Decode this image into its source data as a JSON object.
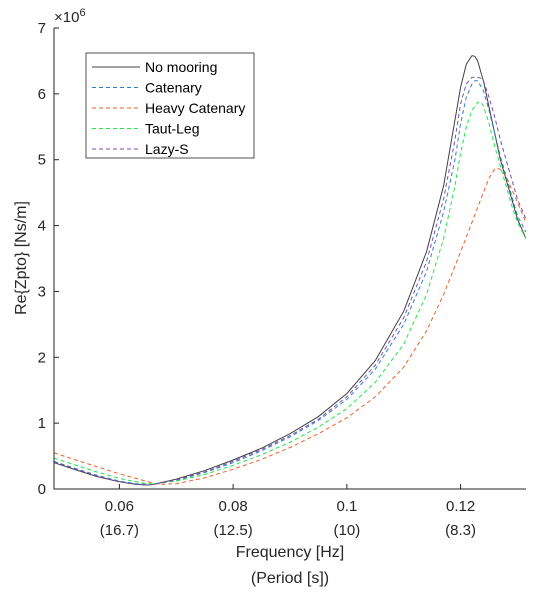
{
  "chart_data": {
    "type": "line",
    "title": "",
    "xlabel": "Frequency [Hz]",
    "xlabel2": "(Period [s])",
    "ylabel": "Re{Zpto} [Ns/m]",
    "y_exponent": "×10",
    "y_exponent_power": "6",
    "xlim": [
      0.0485,
      0.1315
    ],
    "ylim": [
      0,
      7
    ],
    "xticks": [
      0.06,
      0.08,
      0.1,
      0.12
    ],
    "xtick_labels": [
      "0.06",
      "0.08",
      "0.1",
      "0.12"
    ],
    "xtick_period_labels": [
      "(16.7)",
      "(12.5)",
      "(10)",
      "(8.3)"
    ],
    "yticks": [
      0,
      1,
      2,
      3,
      4,
      5,
      6,
      7
    ],
    "ytick_labels": [
      "0",
      "1",
      "2",
      "3",
      "4",
      "5",
      "6",
      "7"
    ],
    "grid": false,
    "legend_position": "top-left",
    "series": [
      {
        "name": "No mooring",
        "color": "#404040",
        "dash": "solid",
        "x": [
          0.0485,
          0.052,
          0.056,
          0.06,
          0.063,
          0.065,
          0.066,
          0.07,
          0.075,
          0.08,
          0.085,
          0.09,
          0.095,
          0.1,
          0.105,
          0.11,
          0.114,
          0.117,
          0.119,
          0.12,
          0.121,
          0.122,
          0.1225,
          0.123,
          0.124,
          0.125,
          0.126,
          0.127,
          0.128,
          0.129,
          0.13,
          0.1315
        ],
        "y": [
          0.4,
          0.3,
          0.19,
          0.11,
          0.07,
          0.06,
          0.07,
          0.15,
          0.28,
          0.44,
          0.62,
          0.84,
          1.1,
          1.45,
          1.95,
          2.7,
          3.6,
          4.6,
          5.6,
          6.1,
          6.45,
          6.58,
          6.57,
          6.5,
          6.2,
          5.8,
          5.4,
          5.0,
          4.7,
          4.4,
          4.1,
          3.8
        ]
      },
      {
        "name": "Catenary",
        "color": "#2e7fcf",
        "dash": "dashed",
        "x": [
          0.0485,
          0.052,
          0.056,
          0.06,
          0.063,
          0.065,
          0.066,
          0.07,
          0.075,
          0.08,
          0.085,
          0.09,
          0.095,
          0.1,
          0.105,
          0.11,
          0.114,
          0.117,
          0.119,
          0.12,
          0.121,
          0.122,
          0.1225,
          0.123,
          0.124,
          0.125,
          0.126,
          0.127,
          0.128,
          0.129,
          0.13,
          0.1315
        ],
        "y": [
          0.42,
          0.32,
          0.21,
          0.12,
          0.08,
          0.07,
          0.07,
          0.13,
          0.25,
          0.4,
          0.58,
          0.79,
          1.04,
          1.36,
          1.82,
          2.5,
          3.3,
          4.2,
          5.0,
          5.55,
          5.95,
          6.15,
          6.2,
          6.2,
          6.05,
          5.75,
          5.4,
          5.05,
          4.75,
          4.45,
          4.15,
          3.9
        ]
      },
      {
        "name": "Heavy Catenary",
        "color": "#e8632c",
        "dash": "dashed",
        "x": [
          0.0485,
          0.052,
          0.056,
          0.06,
          0.063,
          0.065,
          0.067,
          0.07,
          0.075,
          0.08,
          0.085,
          0.09,
          0.095,
          0.1,
          0.105,
          0.11,
          0.114,
          0.117,
          0.12,
          0.122,
          0.124,
          0.125,
          0.126,
          0.1265,
          0.127,
          0.128,
          0.129,
          0.13,
          0.1315
        ],
        "y": [
          0.55,
          0.45,
          0.34,
          0.23,
          0.16,
          0.11,
          0.07,
          0.08,
          0.17,
          0.3,
          0.45,
          0.63,
          0.84,
          1.08,
          1.4,
          1.85,
          2.4,
          2.95,
          3.6,
          4.05,
          4.5,
          4.72,
          4.86,
          4.87,
          4.85,
          4.75,
          4.55,
          4.35,
          4.05
        ]
      },
      {
        "name": "Taut-Leg",
        "color": "#22e64a",
        "dash": "dashed",
        "x": [
          0.0485,
          0.052,
          0.056,
          0.06,
          0.063,
          0.065,
          0.066,
          0.07,
          0.075,
          0.08,
          0.085,
          0.09,
          0.095,
          0.1,
          0.105,
          0.11,
          0.114,
          0.117,
          0.119,
          0.12,
          0.121,
          0.122,
          0.123,
          0.1235,
          0.124,
          0.125,
          0.126,
          0.127,
          0.128,
          0.129,
          0.13,
          0.1315
        ],
        "y": [
          0.47,
          0.37,
          0.26,
          0.16,
          0.11,
          0.08,
          0.08,
          0.12,
          0.22,
          0.36,
          0.52,
          0.71,
          0.94,
          1.22,
          1.62,
          2.2,
          2.95,
          3.8,
          4.6,
          5.1,
          5.5,
          5.75,
          5.87,
          5.88,
          5.82,
          5.55,
          5.2,
          4.9,
          4.6,
          4.3,
          4.05,
          3.8
        ]
      },
      {
        "name": "Lazy-S",
        "color": "#7a50b0",
        "dash": "dashed",
        "x": [
          0.0485,
          0.052,
          0.056,
          0.06,
          0.063,
          0.065,
          0.066,
          0.07,
          0.075,
          0.08,
          0.085,
          0.09,
          0.095,
          0.1,
          0.105,
          0.11,
          0.114,
          0.117,
          0.119,
          0.12,
          0.121,
          0.122,
          0.123,
          0.1235,
          0.124,
          0.125,
          0.126,
          0.127,
          0.128,
          0.129,
          0.13,
          0.1315
        ],
        "y": [
          0.41,
          0.31,
          0.2,
          0.11,
          0.07,
          0.06,
          0.07,
          0.14,
          0.26,
          0.42,
          0.6,
          0.81,
          1.06,
          1.4,
          1.88,
          2.6,
          3.45,
          4.4,
          5.3,
          5.85,
          6.15,
          6.25,
          6.25,
          6.24,
          6.2,
          5.95,
          5.65,
          5.3,
          5.0,
          4.7,
          4.4,
          4.1
        ]
      }
    ]
  }
}
